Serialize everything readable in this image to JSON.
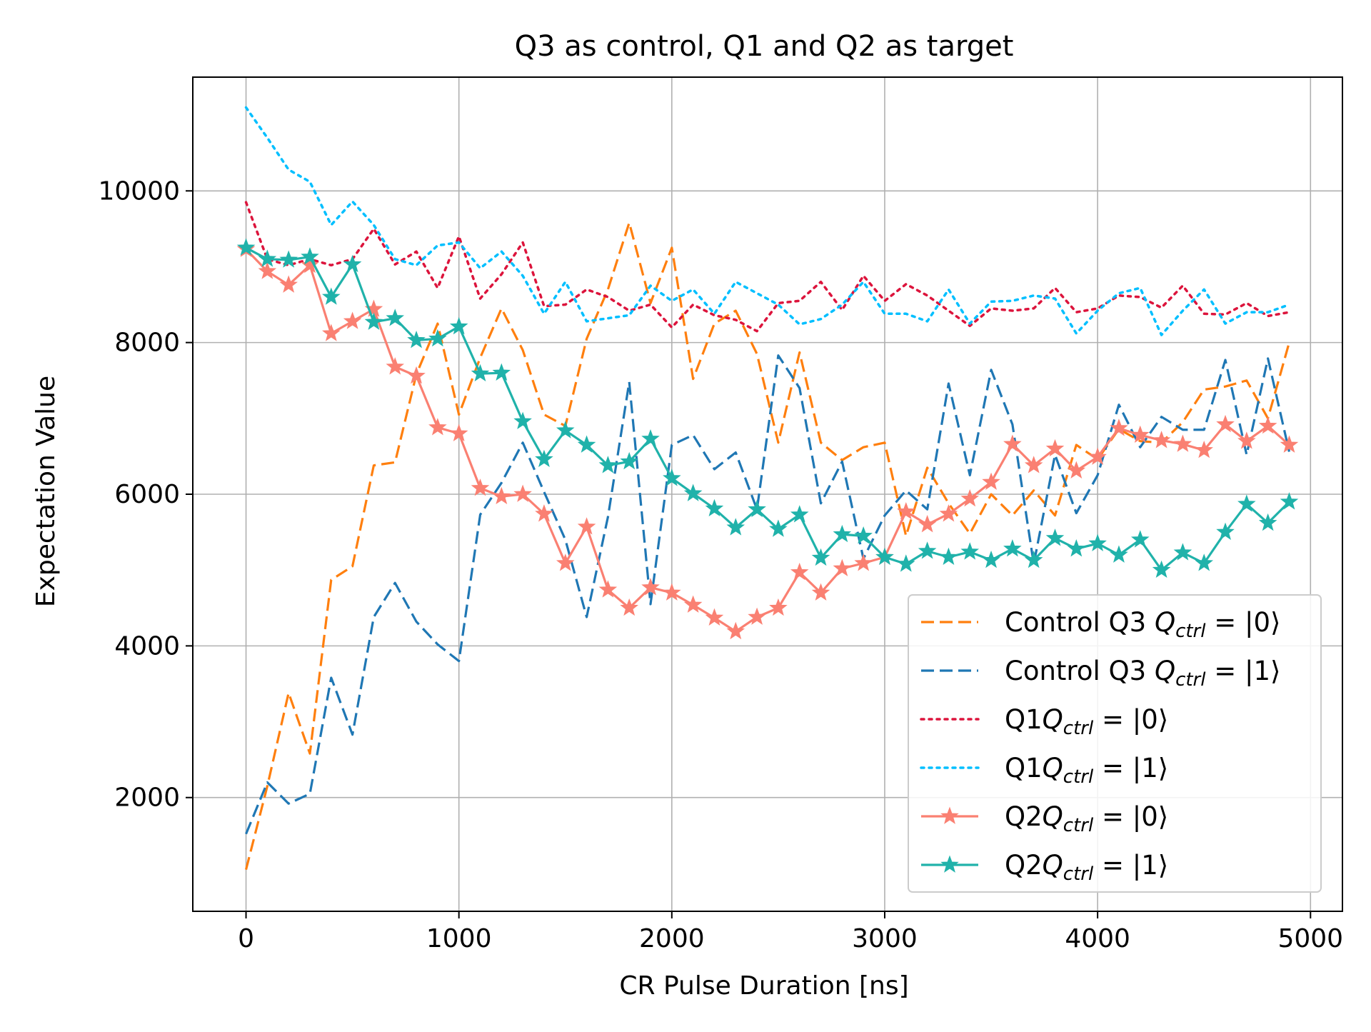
{
  "chart_data": {
    "type": "line",
    "title": "Q3 as control, Q1 and Q2 as target",
    "xlabel": "CR Pulse Duration [ns]",
    "ylabel": "Expectation Value",
    "xlim": [
      -250,
      5150
    ],
    "ylim": [
      500,
      11500
    ],
    "xticks": [
      0,
      1000,
      2000,
      3000,
      4000,
      5000
    ],
    "yticks": [
      2000,
      4000,
      6000,
      8000,
      10000
    ],
    "grid": true,
    "legend_position": "lower right",
    "x": [
      0,
      100,
      200,
      300,
      400,
      500,
      600,
      700,
      800,
      900,
      1000,
      1100,
      1200,
      1300,
      1400,
      1500,
      1600,
      1700,
      1800,
      1900,
      2000,
      2100,
      2200,
      2300,
      2400,
      2500,
      2600,
      2700,
      2800,
      2900,
      3000,
      3100,
      3200,
      3300,
      3400,
      3500,
      3600,
      3700,
      3800,
      3900,
      4000,
      4100,
      4200,
      4300,
      4400,
      4500,
      4600,
      4700,
      4800,
      4900
    ],
    "series": [
      {
        "name": "Control Q3 Q_ctrl=|0⟩",
        "label_prefix": "Control Q3 ",
        "label_sub": "ctrl",
        "label_ket": "|0⟩",
        "color": "#ff7f0e",
        "style": "dashed",
        "marker": "none",
        "values": [
          1050,
          2150,
          3380,
          2580,
          4870,
          5050,
          6380,
          6420,
          7580,
          8250,
          7050,
          7800,
          8450,
          7900,
          7050,
          6900,
          8050,
          8700,
          9580,
          8520,
          9250,
          7520,
          8250,
          8420,
          7850,
          6680,
          7870,
          6680,
          6450,
          6620,
          6680,
          5450,
          6350,
          5880,
          5480,
          6000,
          5720,
          6050,
          5720,
          6650,
          6460,
          6860,
          6700,
          6680,
          6950,
          7380,
          7420,
          7500,
          7000,
          8000
        ]
      },
      {
        "name": "Control Q3 Q_ctrl=|1⟩",
        "label_prefix": "Control Q3 ",
        "label_sub": "ctrl",
        "label_ket": "|1⟩",
        "color": "#1f77b4",
        "style": "dashed",
        "marker": "none",
        "values": [
          1520,
          2200,
          1920,
          2050,
          3580,
          2830,
          4380,
          4830,
          4320,
          4020,
          3800,
          5730,
          6150,
          6680,
          6030,
          5400,
          4380,
          5700,
          7480,
          4550,
          6650,
          6780,
          6330,
          6550,
          5800,
          7830,
          7400,
          5880,
          6430,
          5150,
          5720,
          6050,
          5800,
          7460,
          6250,
          7640,
          6920,
          5080,
          6520,
          5750,
          6250,
          7180,
          6620,
          7020,
          6850,
          6850,
          7770,
          6520,
          7790,
          6560
        ]
      },
      {
        "name": "Q1Q_ctrl=|0⟩",
        "label_prefix": "Q1",
        "label_sub": "ctrl",
        "label_ket": "|0⟩",
        "color": "#dc143c",
        "style": "dotted",
        "marker": "none",
        "values": [
          9850,
          9100,
          9020,
          9100,
          9020,
          9100,
          9500,
          9030,
          9200,
          8720,
          9400,
          8580,
          8900,
          9320,
          8480,
          8500,
          8700,
          8600,
          8420,
          8500,
          8200,
          8500,
          8360,
          8300,
          8150,
          8520,
          8550,
          8800,
          8430,
          8880,
          8550,
          8770,
          8620,
          8420,
          8220,
          8450,
          8420,
          8450,
          8720,
          8400,
          8450,
          8620,
          8600,
          8460,
          8750,
          8380,
          8370,
          8520,
          8350,
          8400
        ]
      },
      {
        "name": "Q1Q_ctrl=|1⟩",
        "label_prefix": "Q1",
        "label_sub": "ctrl",
        "label_ket": "|1⟩",
        "color": "#00bfff",
        "style": "dotted",
        "marker": "none",
        "values": [
          11100,
          10700,
          10280,
          10120,
          9550,
          9860,
          9550,
          9100,
          9020,
          9280,
          9320,
          8980,
          9200,
          8880,
          8380,
          8800,
          8280,
          8320,
          8360,
          8750,
          8550,
          8700,
          8380,
          8800,
          8650,
          8500,
          8240,
          8310,
          8500,
          8800,
          8380,
          8380,
          8280,
          8700,
          8250,
          8540,
          8550,
          8620,
          8580,
          8120,
          8420,
          8650,
          8720,
          8100,
          8420,
          8700,
          8250,
          8400,
          8400,
          8500
        ]
      },
      {
        "name": "Q2Q_ctrl=|0⟩",
        "label_prefix": "Q2",
        "label_sub": "ctrl",
        "label_ket": "|0⟩",
        "color": "#fa8072",
        "style": "solid",
        "marker": "star",
        "values": [
          9230,
          8940,
          8760,
          9020,
          8120,
          8280,
          8440,
          7680,
          7560,
          6880,
          6800,
          6080,
          5970,
          6000,
          5740,
          5090,
          5570,
          4740,
          4500,
          4770,
          4700,
          4540,
          4370,
          4190,
          4380,
          4500,
          4970,
          4700,
          5020,
          5090,
          5170,
          5770,
          5600,
          5740,
          5940,
          6160,
          6660,
          6380,
          6600,
          6310,
          6490,
          6870,
          6780,
          6710,
          6660,
          6580,
          6920,
          6700,
          6900,
          6650
        ]
      },
      {
        "name": "Q2Q_ctrl=|1⟩",
        "label_prefix": "Q2",
        "label_sub": "ctrl",
        "label_ket": "|1⟩",
        "color": "#20b2aa",
        "style": "solid",
        "marker": "star",
        "values": [
          9250,
          9100,
          9090,
          9130,
          8600,
          9030,
          8270,
          8320,
          8030,
          8050,
          8210,
          7590,
          7600,
          6960,
          6460,
          6840,
          6650,
          6380,
          6430,
          6730,
          6210,
          6010,
          5810,
          5560,
          5800,
          5540,
          5730,
          5160,
          5470,
          5450,
          5170,
          5080,
          5250,
          5170,
          5240,
          5130,
          5280,
          5130,
          5420,
          5280,
          5350,
          5200,
          5400,
          5000,
          5230,
          5090,
          5500,
          5870,
          5620,
          5900
        ]
      }
    ]
  }
}
